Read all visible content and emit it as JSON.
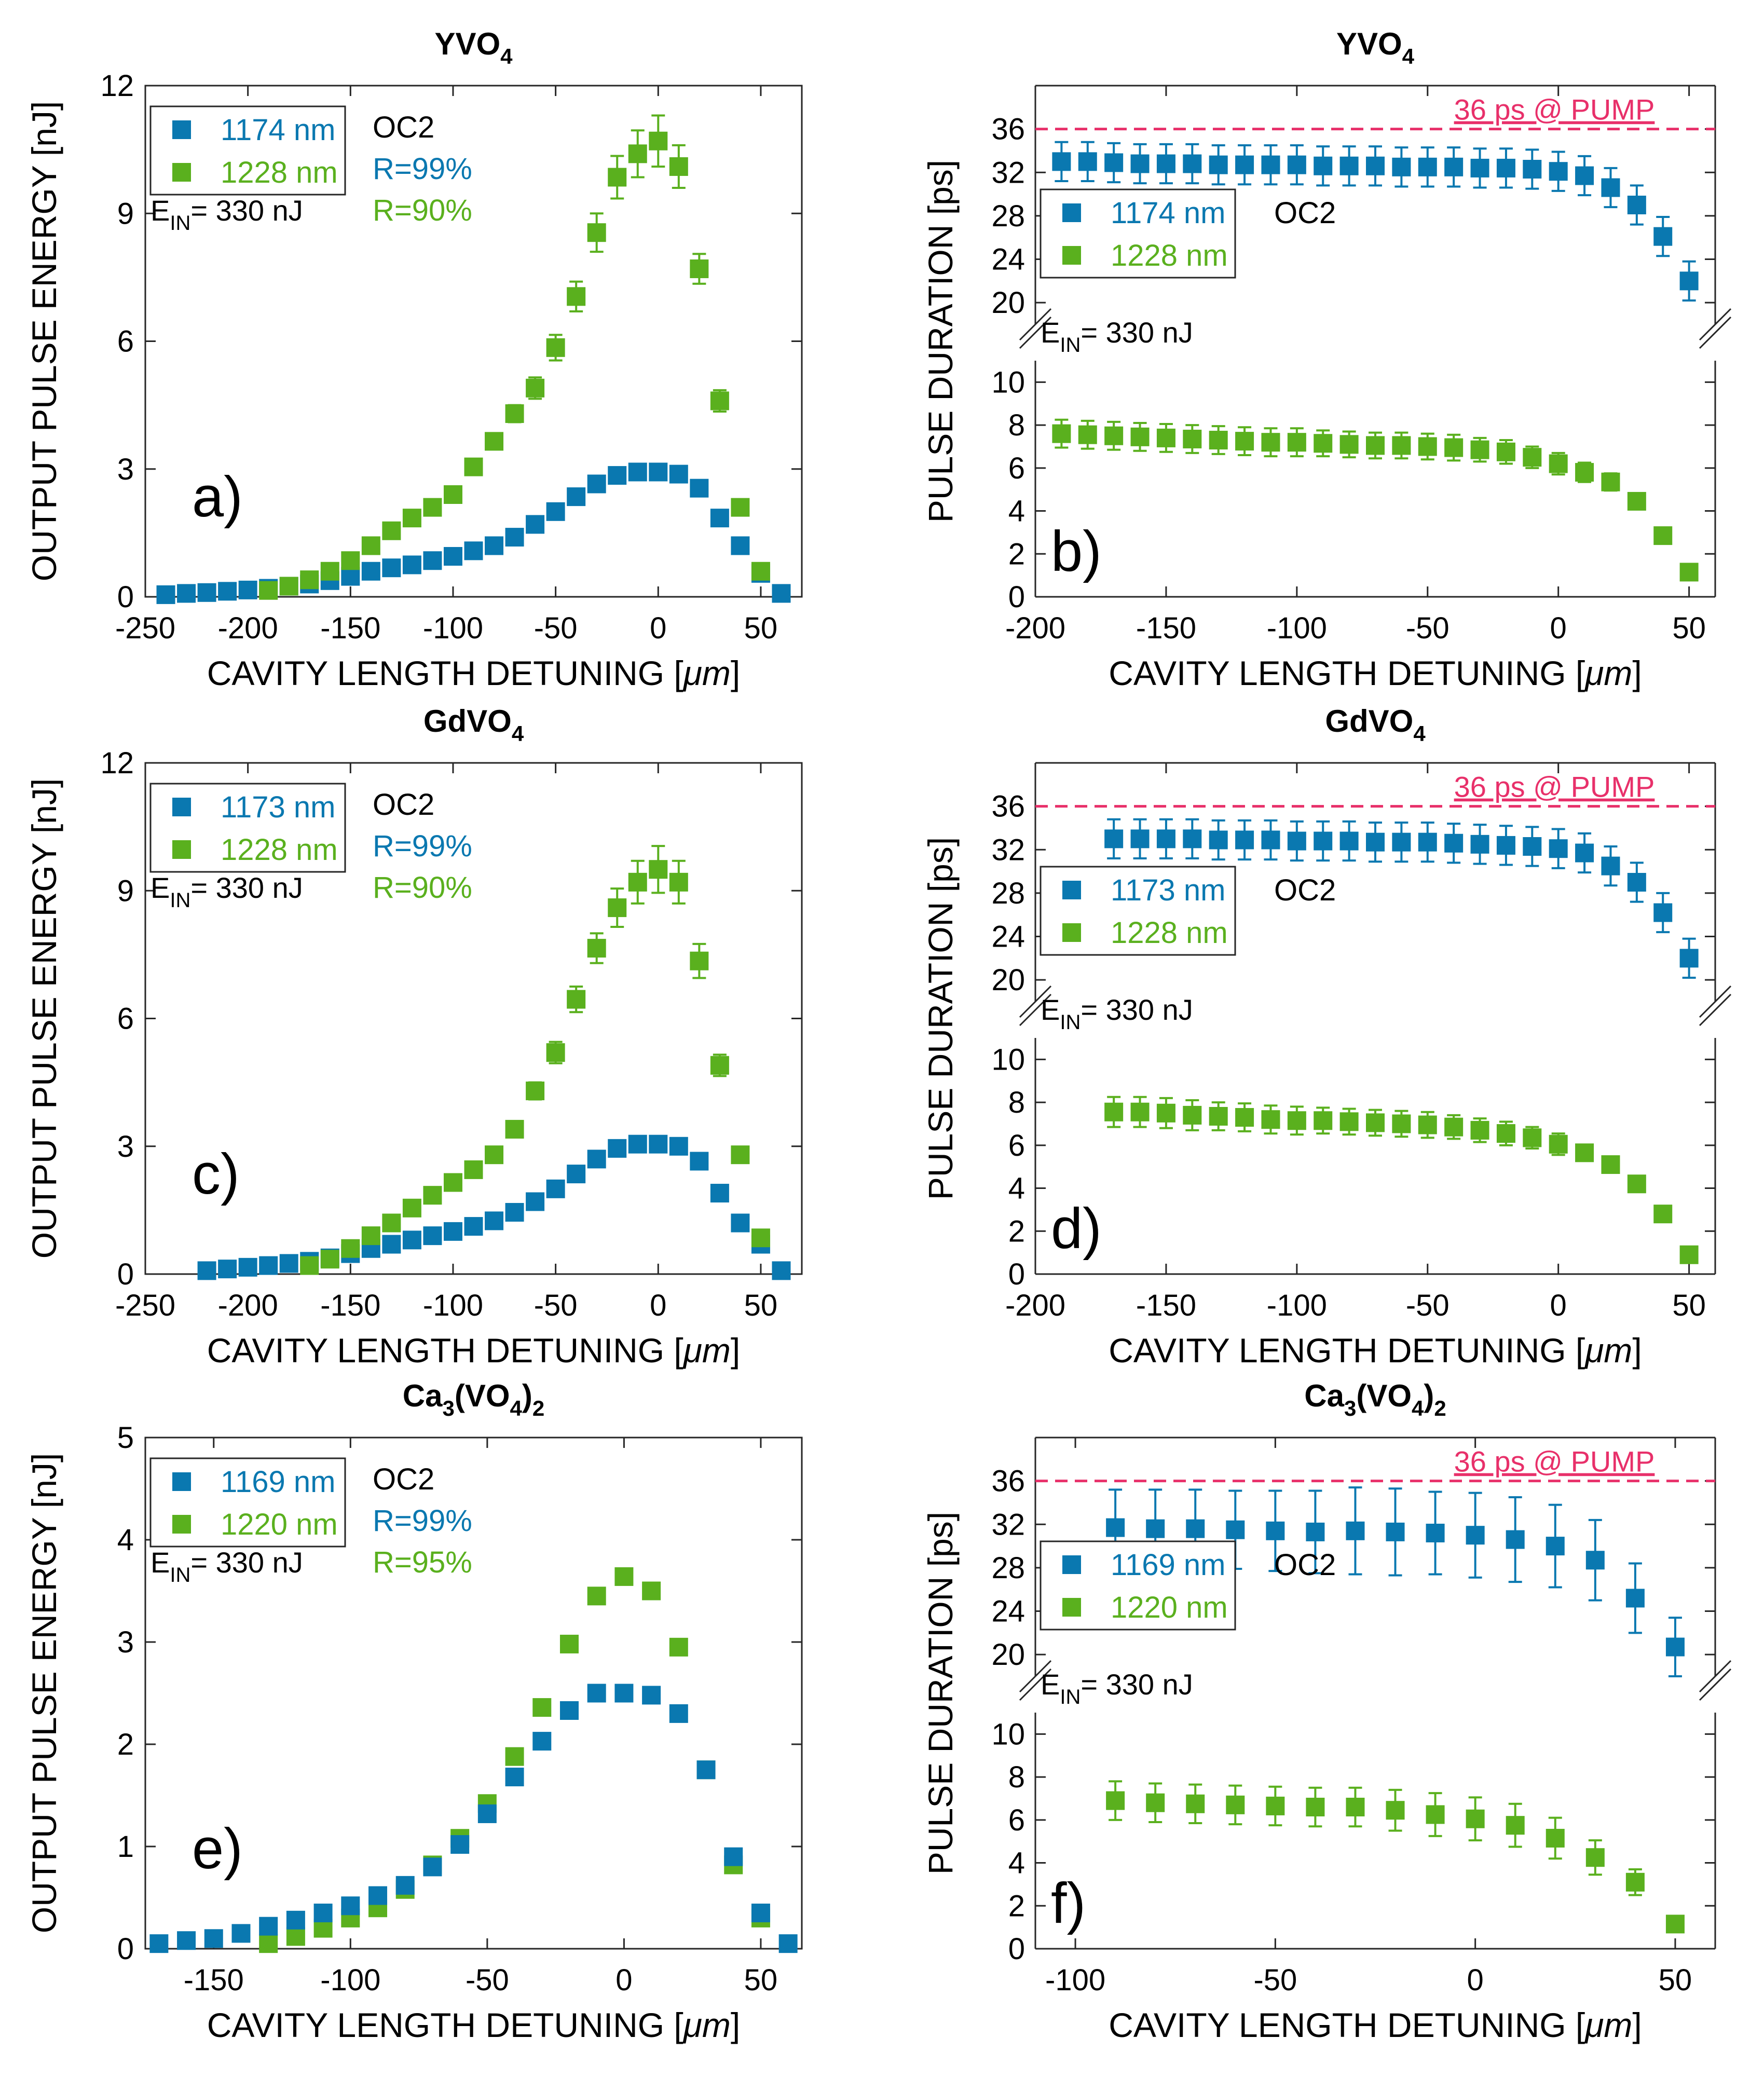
{
  "figure": {
    "xlabel_main": "CAVITY LENGTH DETUNING [",
    "xlabel_unit": "μm",
    "xlabel_close": "]",
    "ylabel_energy": "OUTPUT PULSE ENERGY [nJ]",
    "ylabel_duration": "PULSE DURATION [ps]",
    "pump_label": "36 ps @ PUMP",
    "oc_label": "OC2",
    "ein_label": "E",
    "ein_sub": "IN",
    "ein_value": "= 330 nJ"
  },
  "colors": {
    "blue": "#0a78b0",
    "green": "#5ab01e",
    "pump": "#e8306a",
    "axis": "#262626"
  },
  "chart_data": [
    {
      "id": "a",
      "type": "scatter",
      "panel_label": "a)",
      "title_main": "YVO",
      "title_sub": "4",
      "title_rest": "",
      "xlim": [
        -250,
        70
      ],
      "ylim": [
        0,
        12
      ],
      "xticks": [
        -250,
        -200,
        -150,
        -100,
        -50,
        0,
        50
      ],
      "yticks": [
        0,
        3,
        6,
        9,
        12
      ],
      "ylabel": "OUTPUT PULSE ENERGY [nJ]",
      "legend": {
        "items": [
          "1174 nm",
          "1228 nm"
        ],
        "extra": [
          "OC2",
          "R=99%",
          "R=90%"
        ]
      },
      "series": [
        {
          "name": "1174 nm",
          "color": "blue",
          "x": [
            -240,
            -230,
            -220,
            -210,
            -200,
            -190,
            -180,
            -170,
            -160,
            -150,
            -140,
            -130,
            -120,
            -110,
            -100,
            -90,
            -80,
            -70,
            -60,
            -50,
            -40,
            -30,
            -20,
            -10,
            0,
            10,
            20,
            30,
            40,
            50,
            60
          ],
          "y": [
            0.05,
            0.08,
            0.1,
            0.13,
            0.16,
            0.2,
            0.25,
            0.3,
            0.38,
            0.48,
            0.6,
            0.68,
            0.75,
            0.85,
            0.95,
            1.08,
            1.2,
            1.4,
            1.7,
            2.0,
            2.35,
            2.65,
            2.85,
            2.93,
            2.93,
            2.88,
            2.55,
            1.85,
            1.2,
            0.55,
            0.08
          ]
        },
        {
          "name": "1228 nm",
          "color": "green",
          "x": [
            -190,
            -180,
            -170,
            -160,
            -150,
            -140,
            -130,
            -120,
            -110,
            -100,
            -90,
            -80,
            -70,
            -60,
            -50,
            -40,
            -30,
            -20,
            -10,
            0,
            10,
            20,
            30,
            40,
            50
          ],
          "y": [
            0.15,
            0.25,
            0.4,
            0.6,
            0.85,
            1.2,
            1.55,
            1.85,
            2.1,
            2.4,
            3.05,
            3.65,
            4.3,
            4.9,
            5.85,
            7.05,
            8.55,
            9.85,
            10.4,
            10.7,
            10.1,
            7.7,
            4.6,
            2.1,
            0.6
          ],
          "err": [
            0.1,
            0.1,
            0.1,
            0.1,
            0.1,
            0.1,
            0.1,
            0.1,
            0.1,
            0.1,
            0.15,
            0.15,
            0.2,
            0.25,
            0.3,
            0.35,
            0.45,
            0.5,
            0.55,
            0.6,
            0.5,
            0.35,
            0.25,
            0.15,
            0.1
          ]
        }
      ]
    },
    {
      "id": "b",
      "type": "scatter",
      "panel_label": "b)",
      "broken_axis": true,
      "title_main": "YVO",
      "title_sub": "4",
      "title_rest": "",
      "xlim": [
        -200,
        60
      ],
      "xticks": [
        -200,
        -150,
        -100,
        -50,
        0,
        50
      ],
      "lower_ylim": [
        0,
        11
      ],
      "lower_yticks": [
        0,
        2,
        4,
        6,
        8,
        10
      ],
      "upper_ylim": [
        18,
        40
      ],
      "upper_yticks": [
        20,
        24,
        28,
        32,
        36
      ],
      "pump_level": 36,
      "legend": {
        "items": [
          "1174 nm",
          "1228 nm"
        ]
      },
      "series": [
        {
          "name": "1174 nm",
          "color": "blue",
          "axis": "upper",
          "x": [
            -190,
            -180,
            -170,
            -160,
            -150,
            -140,
            -130,
            -120,
            -110,
            -100,
            -90,
            -80,
            -70,
            -60,
            -50,
            -40,
            -30,
            -20,
            -10,
            0,
            10,
            20,
            30,
            40,
            50
          ],
          "y": [
            33,
            33,
            32.9,
            32.8,
            32.8,
            32.8,
            32.7,
            32.7,
            32.7,
            32.7,
            32.6,
            32.6,
            32.6,
            32.5,
            32.5,
            32.5,
            32.4,
            32.4,
            32.3,
            32.1,
            31.7,
            30.6,
            29,
            26.1,
            22
          ],
          "err": [
            1.8,
            1.8,
            1.8,
            1.8,
            1.8,
            1.8,
            1.8,
            1.8,
            1.8,
            1.8,
            1.8,
            1.8,
            1.8,
            1.8,
            1.8,
            1.8,
            1.8,
            1.8,
            1.8,
            1.8,
            1.8,
            1.8,
            1.8,
            1.8,
            1.8
          ]
        },
        {
          "name": "1228 nm",
          "color": "green",
          "axis": "lower",
          "x": [
            -190,
            -180,
            -170,
            -160,
            -150,
            -140,
            -130,
            -120,
            -110,
            -100,
            -90,
            -80,
            -70,
            -60,
            -50,
            -40,
            -30,
            -20,
            -10,
            0,
            10,
            20,
            30,
            40,
            50
          ],
          "y": [
            7.6,
            7.55,
            7.5,
            7.45,
            7.4,
            7.35,
            7.3,
            7.25,
            7.2,
            7.2,
            7.15,
            7.1,
            7.05,
            7.05,
            7,
            6.95,
            6.85,
            6.75,
            6.5,
            6.2,
            5.8,
            5.35,
            4.45,
            2.85,
            1.15
          ],
          "err": [
            0.65,
            0.65,
            0.65,
            0.65,
            0.65,
            0.65,
            0.65,
            0.65,
            0.65,
            0.65,
            0.6,
            0.6,
            0.6,
            0.6,
            0.6,
            0.6,
            0.55,
            0.55,
            0.5,
            0.5,
            0.45,
            0.4,
            0.2,
            0.15,
            0.1
          ]
        }
      ]
    },
    {
      "id": "c",
      "type": "scatter",
      "panel_label": "c)",
      "title_main": "GdVO",
      "title_sub": "4",
      "title_rest": "",
      "xlim": [
        -250,
        70
      ],
      "ylim": [
        0,
        12
      ],
      "xticks": [
        -250,
        -200,
        -150,
        -100,
        -50,
        0,
        50
      ],
      "yticks": [
        0,
        3,
        6,
        9,
        12
      ],
      "ylabel": "OUTPUT PULSE ENERGY [nJ]",
      "legend": {
        "items": [
          "1173 nm",
          "1228 nm"
        ],
        "extra": [
          "OC2",
          "R=99%",
          "R=90%"
        ]
      },
      "series": [
        {
          "name": "1173 nm",
          "color": "blue",
          "x": [
            -220,
            -210,
            -200,
            -190,
            -180,
            -170,
            -160,
            -150,
            -140,
            -130,
            -120,
            -110,
            -100,
            -90,
            -80,
            -70,
            -60,
            -50,
            -40,
            -30,
            -20,
            -10,
            0,
            10,
            20,
            30,
            40,
            50,
            60
          ],
          "y": [
            0.08,
            0.12,
            0.16,
            0.2,
            0.25,
            0.3,
            0.38,
            0.48,
            0.6,
            0.7,
            0.8,
            0.9,
            1.0,
            1.12,
            1.25,
            1.45,
            1.7,
            2.0,
            2.35,
            2.7,
            2.95,
            3.05,
            3.05,
            3.0,
            2.65,
            1.9,
            1.2,
            0.7,
            0.08
          ]
        },
        {
          "name": "1228 nm",
          "color": "green",
          "x": [
            -170,
            -160,
            -150,
            -140,
            -130,
            -120,
            -110,
            -100,
            -90,
            -80,
            -70,
            -60,
            -50,
            -40,
            -30,
            -20,
            -10,
            0,
            10,
            20,
            30,
            40,
            50
          ],
          "y": [
            0.2,
            0.35,
            0.6,
            0.9,
            1.2,
            1.55,
            1.85,
            2.15,
            2.45,
            2.8,
            3.4,
            4.3,
            5.2,
            6.45,
            7.65,
            8.6,
            9.2,
            9.5,
            9.2,
            7.35,
            4.9,
            2.8,
            0.85
          ],
          "err": [
            0.1,
            0.1,
            0.1,
            0.1,
            0.1,
            0.1,
            0.1,
            0.1,
            0.1,
            0.1,
            0.15,
            0.2,
            0.25,
            0.3,
            0.35,
            0.45,
            0.5,
            0.55,
            0.5,
            0.4,
            0.25,
            0.15,
            0.1
          ]
        }
      ]
    },
    {
      "id": "d",
      "type": "scatter",
      "panel_label": "d)",
      "broken_axis": true,
      "title_main": "GdVO",
      "title_sub": "4",
      "title_rest": "",
      "xlim": [
        -200,
        60
      ],
      "xticks": [
        -200,
        -150,
        -100,
        -50,
        0,
        50
      ],
      "lower_ylim": [
        0,
        11
      ],
      "lower_yticks": [
        0,
        2,
        4,
        6,
        8,
        10
      ],
      "upper_ylim": [
        18,
        40
      ],
      "upper_yticks": [
        20,
        24,
        28,
        32,
        36
      ],
      "pump_level": 36,
      "legend": {
        "items": [
          "1173 nm",
          "1228 nm"
        ]
      },
      "series": [
        {
          "name": "1173 nm",
          "color": "blue",
          "axis": "upper",
          "x": [
            -170,
            -160,
            -150,
            -140,
            -130,
            -120,
            -110,
            -100,
            -90,
            -80,
            -70,
            -60,
            -50,
            -40,
            -30,
            -20,
            -10,
            0,
            10,
            20,
            30,
            40,
            50
          ],
          "y": [
            33,
            33,
            33,
            33,
            32.9,
            32.9,
            32.9,
            32.8,
            32.8,
            32.8,
            32.7,
            32.7,
            32.7,
            32.6,
            32.5,
            32.4,
            32.3,
            32.1,
            31.7,
            30.5,
            29,
            26.2,
            22
          ],
          "err": [
            1.8,
            1.8,
            1.8,
            1.8,
            1.8,
            1.8,
            1.8,
            1.8,
            1.8,
            1.8,
            1.8,
            1.8,
            1.8,
            1.8,
            1.8,
            1.8,
            1.8,
            1.8,
            1.8,
            1.8,
            1.8,
            1.8,
            1.8
          ]
        },
        {
          "name": "1228 nm",
          "color": "green",
          "axis": "lower",
          "x": [
            -170,
            -160,
            -150,
            -140,
            -130,
            -120,
            -110,
            -100,
            -90,
            -80,
            -70,
            -60,
            -50,
            -40,
            -30,
            -20,
            -10,
            0,
            10,
            20,
            30,
            40,
            50
          ],
          "y": [
            7.55,
            7.55,
            7.5,
            7.4,
            7.35,
            7.3,
            7.2,
            7.15,
            7.15,
            7.1,
            7.05,
            7,
            6.95,
            6.85,
            6.7,
            6.55,
            6.35,
            6.05,
            5.65,
            5.1,
            4.2,
            2.8,
            0.9
          ],
          "err": [
            0.7,
            0.7,
            0.7,
            0.7,
            0.65,
            0.65,
            0.65,
            0.65,
            0.6,
            0.6,
            0.6,
            0.6,
            0.6,
            0.55,
            0.55,
            0.55,
            0.5,
            0.5,
            0.35,
            0.25,
            0.15,
            0.15,
            0.1
          ]
        }
      ]
    },
    {
      "id": "e",
      "type": "scatter",
      "panel_label": "e)",
      "title_main": "Ca",
      "title_sub": "3",
      "title_rest": "(VO",
      "title_sub2": "4",
      "title_rest2": ")",
      "title_sub3": "2",
      "xlim": [
        -175,
        65
      ],
      "ylim": [
        0,
        5
      ],
      "xticks": [
        -150,
        -100,
        -50,
        0,
        50
      ],
      "yticks": [
        1,
        2,
        3,
        4,
        5
      ],
      "show_y0_axis": true,
      "ylabel": "OUTPUT PULSE ENERGY [nJ]",
      "legend": {
        "items": [
          "1169 nm",
          "1220 nm"
        ],
        "extra": [
          "OC2",
          "R=99%",
          "R=95%"
        ]
      },
      "series": [
        {
          "name": "1169 nm",
          "color": "blue",
          "x": [
            -170,
            -160,
            -150,
            -140,
            -130,
            -120,
            -110,
            -100,
            -90,
            -80,
            -70,
            -60,
            -50,
            -40,
            -30,
            -20,
            -10,
            0,
            10,
            20,
            30,
            40,
            50,
            60
          ],
          "y": [
            0.05,
            0.08,
            0.1,
            0.15,
            0.22,
            0.28,
            0.35,
            0.42,
            0.52,
            0.62,
            0.8,
            1.02,
            1.32,
            1.68,
            2.03,
            2.33,
            2.5,
            2.5,
            2.48,
            2.3,
            1.75,
            0.9,
            0.35,
            0.05
          ]
        },
        {
          "name": "1220 nm",
          "color": "green",
          "x": [
            -130,
            -120,
            -110,
            -100,
            -90,
            -80,
            -70,
            -60,
            -50,
            -40,
            -30,
            -20,
            -10,
            0,
            10,
            20,
            30,
            40,
            50
          ],
          "y": [
            0.05,
            0.12,
            0.2,
            0.3,
            0.4,
            0.58,
            0.82,
            1.08,
            1.42,
            1.88,
            2.36,
            2.98,
            3.45,
            3.64,
            3.5,
            2.95,
            1.75,
            0.82,
            0.3
          ]
        }
      ]
    },
    {
      "id": "f",
      "type": "scatter",
      "panel_label": "f)",
      "broken_axis": true,
      "title_main": "Ca",
      "title_sub": "3",
      "title_rest": "(VO",
      "title_sub2": "4",
      "title_rest2": ")",
      "title_sub3": "2",
      "xlim": [
        -110,
        60
      ],
      "xticks": [
        -100,
        -50,
        0,
        50
      ],
      "lower_ylim": [
        0,
        11
      ],
      "lower_yticks": [
        0,
        2,
        4,
        6,
        8,
        10
      ],
      "upper_ylim": [
        18,
        40
      ],
      "upper_yticks": [
        20,
        24,
        28,
        32,
        36
      ],
      "pump_level": 36,
      "legend": {
        "items": [
          "1169 nm",
          "1220 nm"
        ]
      },
      "series": [
        {
          "name": "1169 nm",
          "color": "blue",
          "axis": "upper",
          "x": [
            -90,
            -80,
            -70,
            -60,
            -50,
            -40,
            -30,
            -20,
            -10,
            0,
            10,
            20,
            30,
            40,
            50
          ],
          "y": [
            31.7,
            31.6,
            31.6,
            31.5,
            31.4,
            31.3,
            31.4,
            31.3,
            31.2,
            31,
            30.6,
            30,
            28.7,
            25.2,
            20.7
          ],
          "err": [
            3.5,
            3.6,
            3.6,
            3.6,
            3.7,
            3.8,
            4.0,
            4.0,
            3.8,
            3.9,
            3.9,
            3.8,
            3.7,
            3.2,
            2.7
          ]
        },
        {
          "name": "1220 nm",
          "color": "green",
          "axis": "lower",
          "x": [
            -90,
            -80,
            -70,
            -60,
            -50,
            -40,
            -30,
            -20,
            -10,
            0,
            10,
            20,
            30,
            40,
            50
          ],
          "y": [
            6.9,
            6.8,
            6.75,
            6.7,
            6.65,
            6.6,
            6.6,
            6.45,
            6.25,
            6.05,
            5.75,
            5.15,
            4.25,
            3.1,
            1.15
          ],
          "err": [
            0.9,
            0.9,
            0.9,
            0.9,
            0.9,
            0.9,
            0.9,
            0.95,
            1.0,
            1.0,
            1.0,
            0.95,
            0.8,
            0.6,
            0.1
          ]
        }
      ]
    }
  ]
}
